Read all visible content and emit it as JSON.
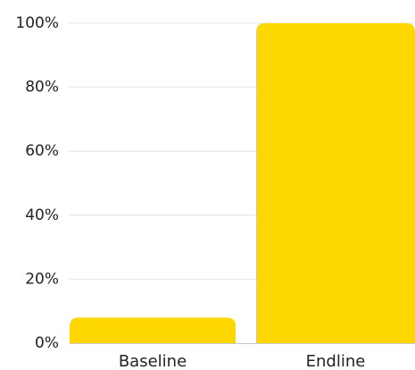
{
  "chart_data": {
    "type": "bar",
    "categories": [
      "Baseline",
      "Endline"
    ],
    "values": [
      8,
      100
    ],
    "ylim": [
      0,
      100
    ],
    "yticks": [
      0,
      20,
      40,
      60,
      80,
      100
    ],
    "ytick_labels": [
      "0%",
      "20%",
      "40%",
      "60%",
      "80%",
      "100%"
    ],
    "title": "",
    "xlabel": "",
    "ylabel": "",
    "grid": true,
    "bar_color": "#FFD700",
    "grid_color": "#e4e4e4"
  }
}
